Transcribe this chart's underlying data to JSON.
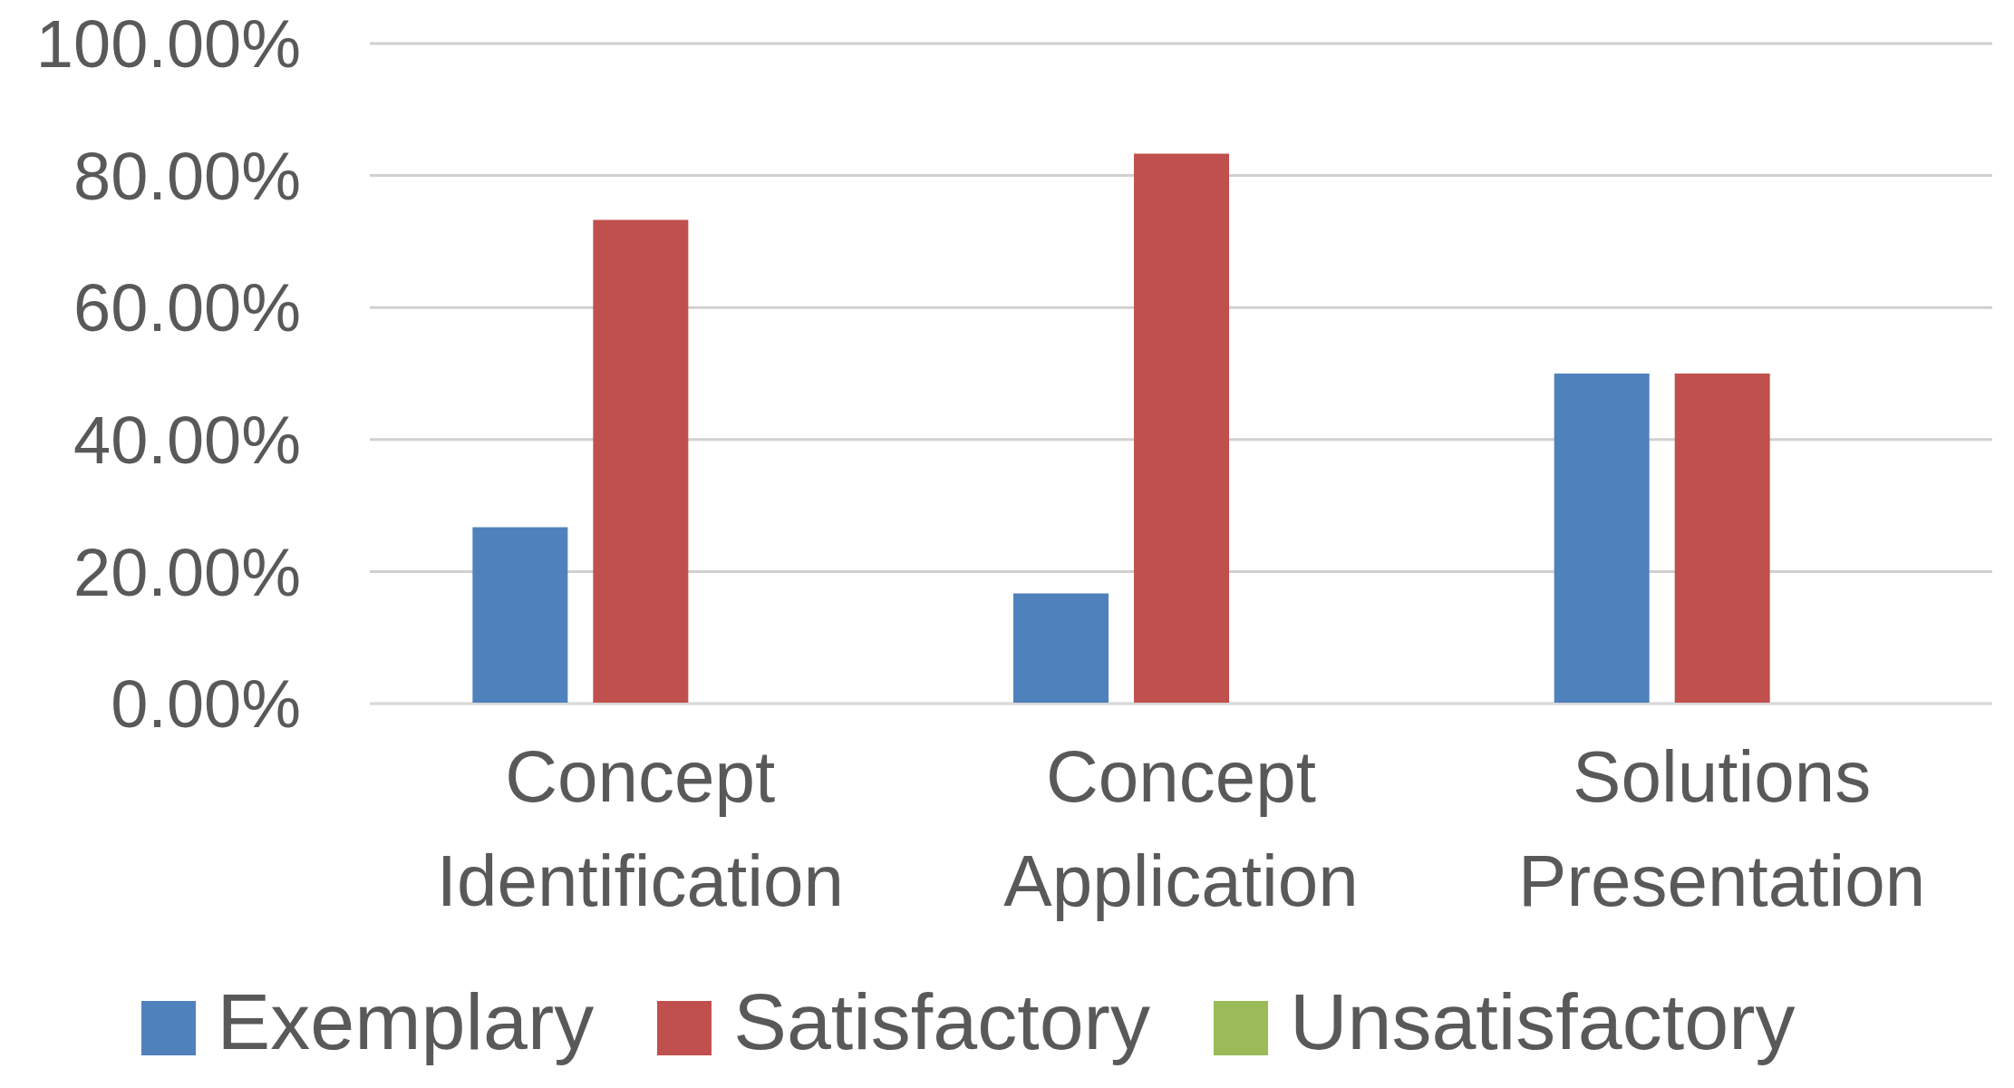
{
  "chart_data": {
    "type": "bar",
    "categories": [
      "Concept Identification",
      "Concept Application",
      "Solutions Presentation"
    ],
    "series": [
      {
        "name": "Exemplary",
        "color": "#4f81bd",
        "values": [
          26.7,
          16.7,
          50
        ]
      },
      {
        "name": "Satisfactory",
        "color": "#c0504d",
        "values": [
          73.3,
          83.3,
          50
        ]
      },
      {
        "name": "Unsatisfactory",
        "color": "#9bbb59",
        "values": [
          0,
          0,
          0
        ]
      }
    ],
    "ylim": [
      0,
      100
    ],
    "yticks": [
      {
        "value": 0,
        "label": "0.00%"
      },
      {
        "value": 20,
        "label": "20.00%"
      },
      {
        "value": 40,
        "label": "40.00%"
      },
      {
        "value": 60,
        "label": "60.00%"
      },
      {
        "value": 80,
        "label": "80.00%"
      },
      {
        "value": 100,
        "label": "100.00%"
      }
    ],
    "grid": "y",
    "legend": "bottom"
  }
}
